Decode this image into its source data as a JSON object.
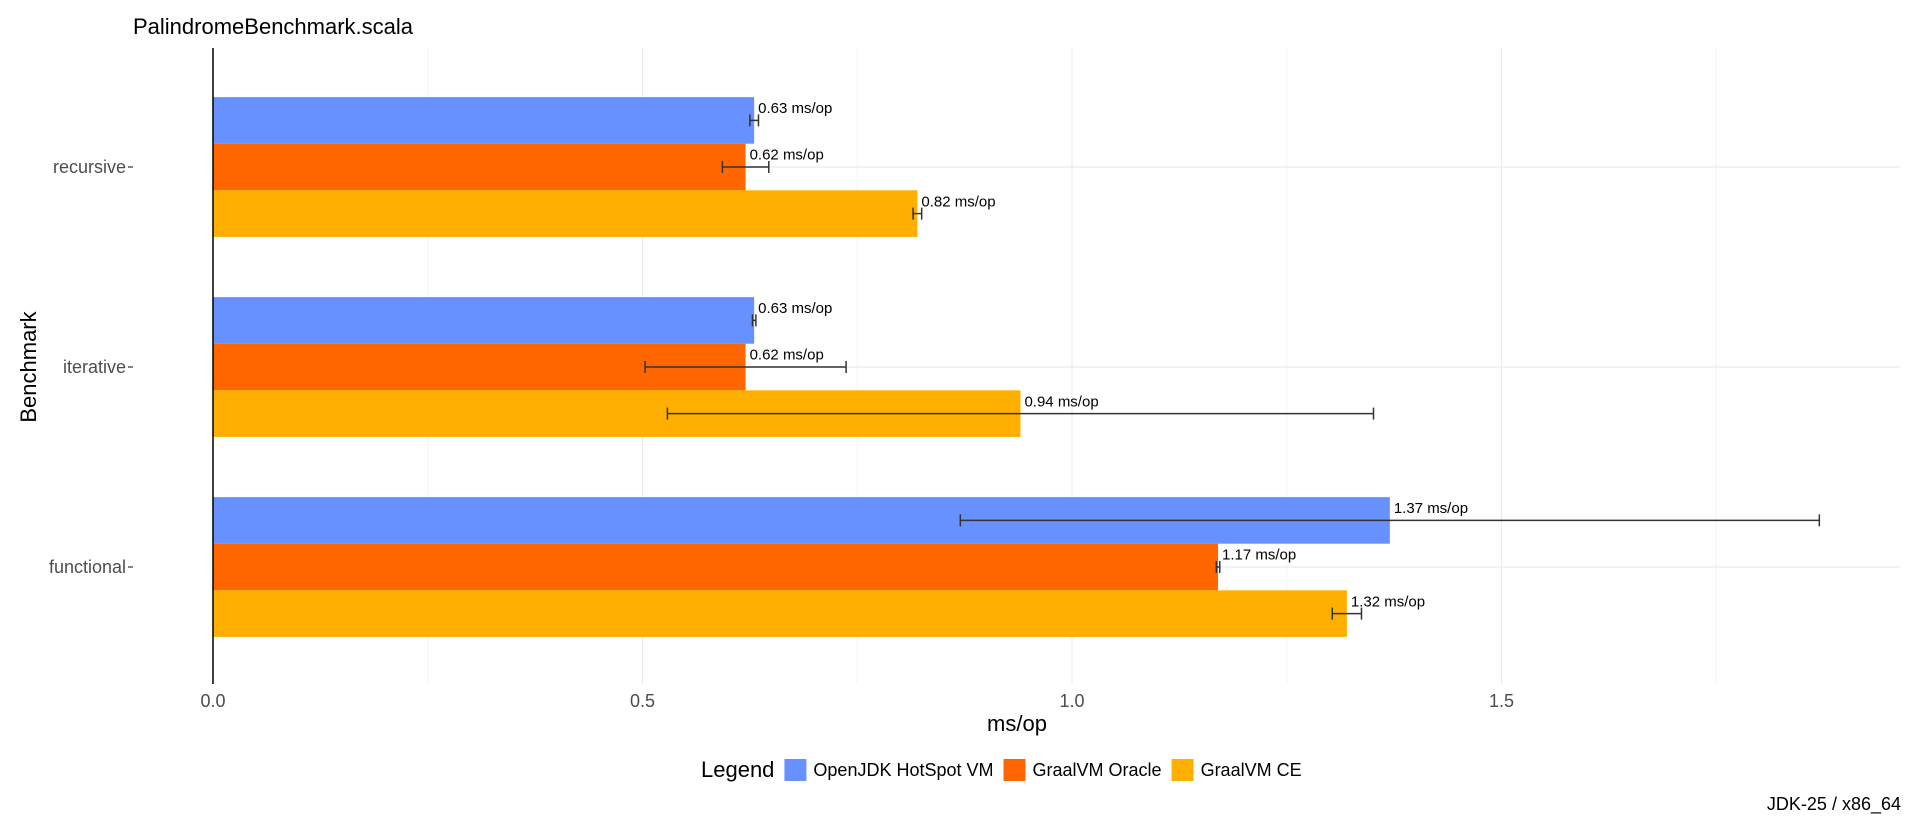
{
  "chart_data": {
    "type": "bar",
    "orientation": "horizontal",
    "title": "PalindromeBenchmark.scala",
    "xlabel": "ms/op",
    "ylabel": "Benchmark",
    "xlim": [
      0,
      1.96
    ],
    "x_ticks": [
      0.0,
      0.5,
      1.0,
      1.5
    ],
    "x_tick_labels": [
      "0.0",
      "0.5",
      "1.0",
      "1.5"
    ],
    "grid": true,
    "categories": [
      "recursive",
      "iterative",
      "functional"
    ],
    "series": [
      {
        "name": "OpenJDK HotSpot VM",
        "color": "#6691ff",
        "values": [
          0.63,
          0.63,
          1.37
        ],
        "error_low": [
          0.625,
          0.628,
          0.87
        ],
        "error_high": [
          0.635,
          0.632,
          1.87
        ],
        "labels": [
          "0.63 ms/op",
          "0.63 ms/op",
          "1.37 ms/op"
        ]
      },
      {
        "name": "GraalVM Oracle",
        "color": "#ff6600",
        "values": [
          0.62,
          0.62,
          1.17
        ],
        "error_low": [
          0.593,
          0.503,
          1.168
        ],
        "error_high": [
          0.647,
          0.737,
          1.172
        ],
        "labels": [
          "0.62 ms/op",
          "0.62 ms/op",
          "1.17 ms/op"
        ]
      },
      {
        "name": "GraalVM CE",
        "color": "#ffaf00",
        "values": [
          0.82,
          0.94,
          1.32
        ],
        "error_low": [
          0.815,
          0.529,
          1.303
        ],
        "error_high": [
          0.825,
          1.351,
          1.337
        ],
        "labels": [
          "0.82 ms/op",
          "0.94 ms/op",
          "1.32 ms/op"
        ]
      }
    ],
    "legend_title": "Legend",
    "legend_position": "bottom",
    "caption": "JDK-25 / x86_64"
  }
}
